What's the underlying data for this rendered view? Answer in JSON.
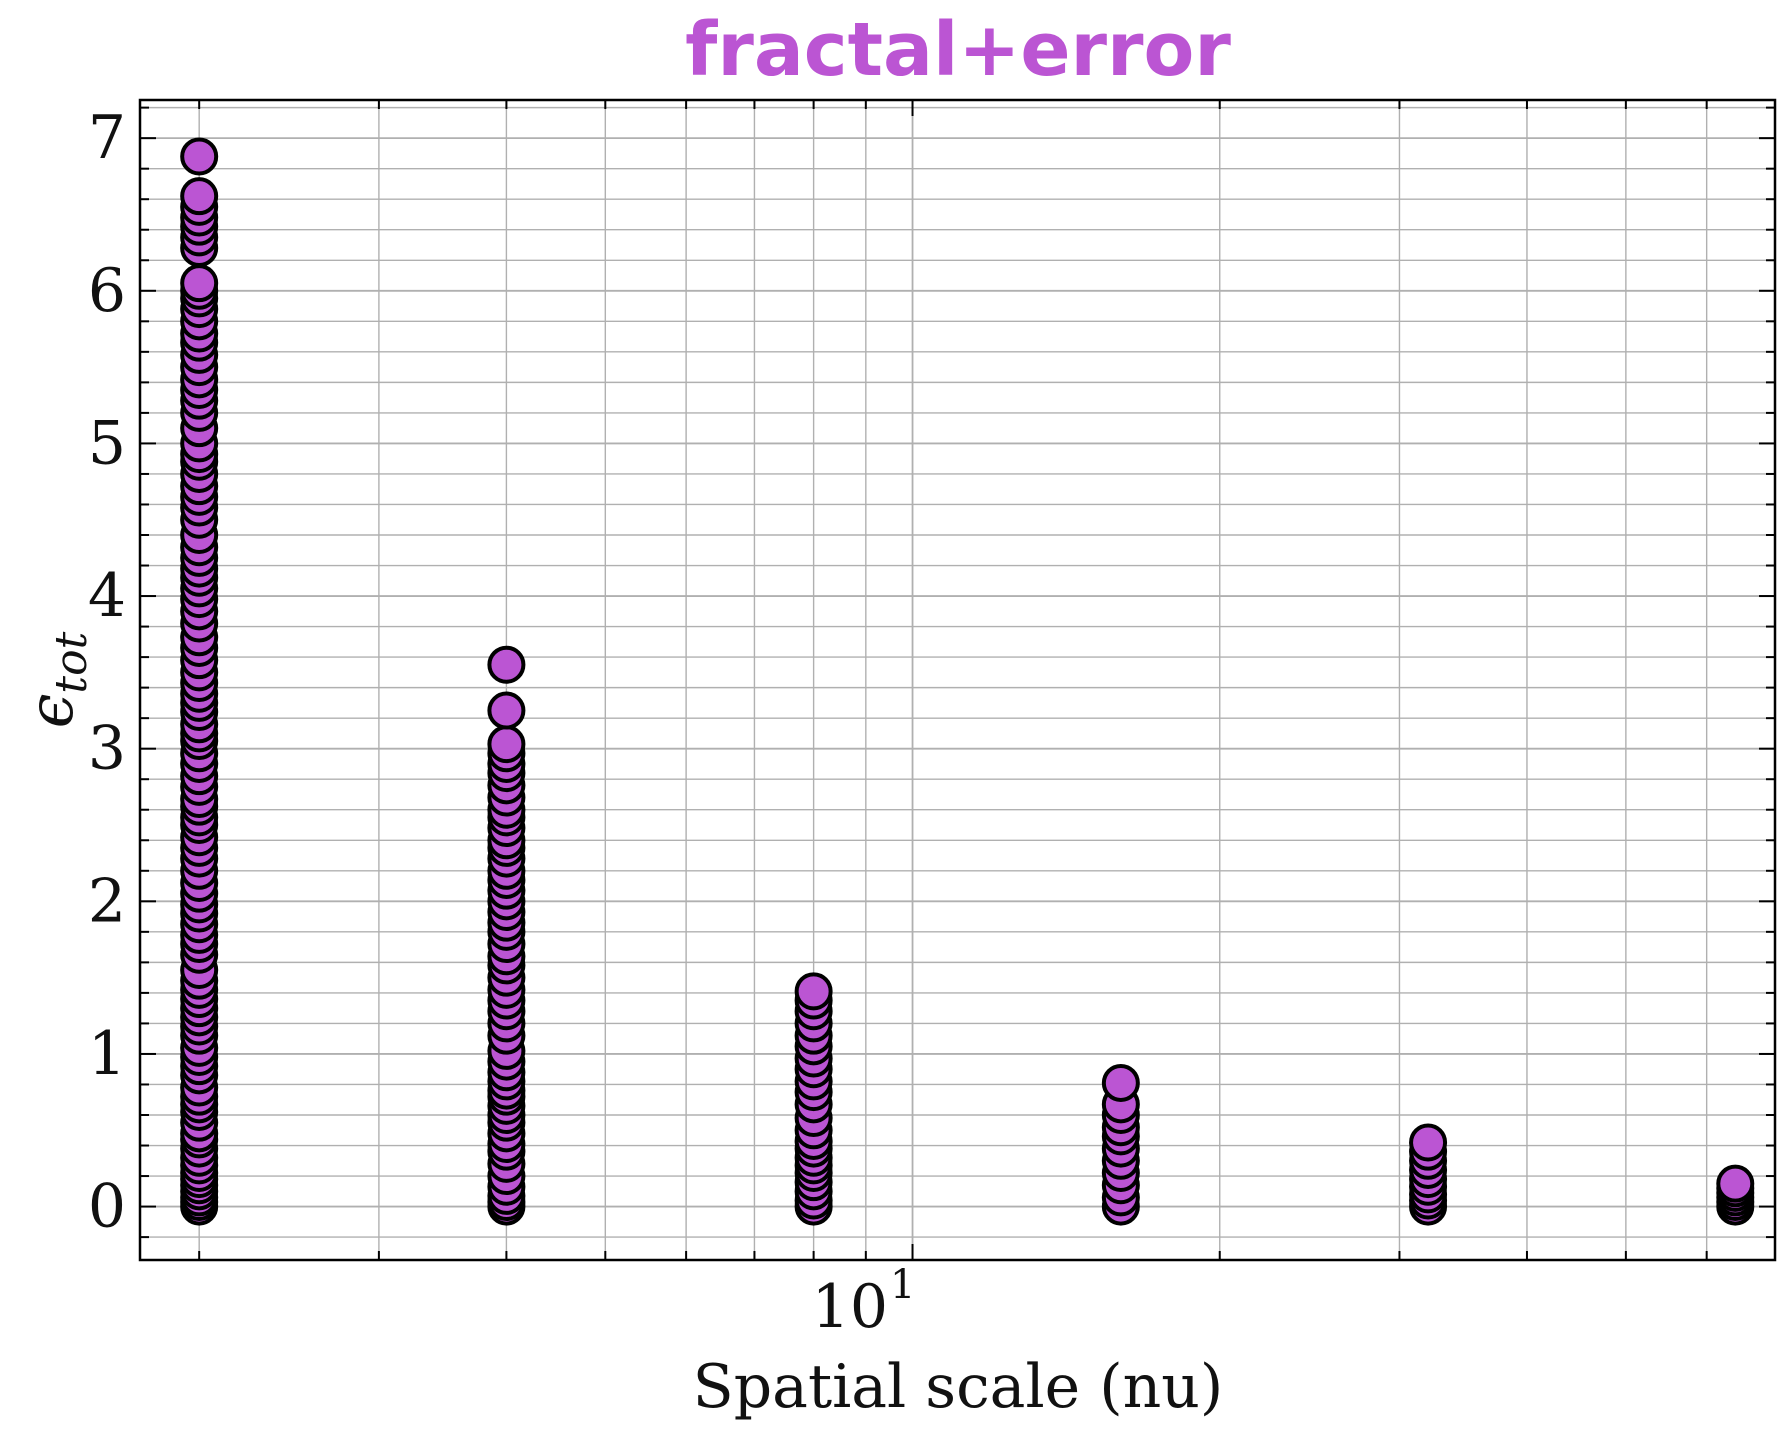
{
  "chart_data": {
    "type": "scatter",
    "title": "fractal+error",
    "xlabel": "Spatial scale (nu)",
    "ylabel": "ϵ",
    "ylabel_subscript": "tot",
    "x_scale": "log",
    "xlim": [
      1.75,
      70
    ],
    "ylim": [
      -0.35,
      7.25
    ],
    "x_tick_label_base": "10",
    "x_tick_label_exp": "1",
    "y_ticks": [
      0,
      1,
      2,
      3,
      4,
      5,
      6,
      7
    ],
    "grid": true,
    "series": [
      {
        "marker": "circle",
        "x": 2,
        "y": [
          0,
          0.03,
          0.06,
          0.1,
          0.14,
          0.18,
          0.22,
          0.27,
          0.32,
          0.38,
          0.44,
          0.48,
          0.55,
          0.62,
          0.67,
          0.72,
          0.78,
          0.86,
          0.92,
          0.98,
          1.04,
          1.12,
          1.18,
          1.24,
          1.3,
          1.36,
          1.42,
          1.48,
          1.55,
          1.65,
          1.72,
          1.78,
          1.85,
          1.92,
          1.98,
          2.05,
          2.12,
          2.2,
          2.28,
          2.35,
          2.42,
          2.5,
          2.55,
          2.62,
          2.67,
          2.75,
          2.82,
          2.9,
          2.97,
          3.05,
          3.1,
          3.16,
          3.24,
          3.3,
          3.36,
          3.43,
          3.5,
          3.58,
          3.66,
          3.73,
          3.82,
          3.9,
          3.98,
          4.05,
          4.12,
          4.18,
          4.25,
          4.32,
          4.4,
          4.5,
          4.58,
          4.65,
          4.72,
          4.8,
          4.88,
          4.93,
          5.0,
          5.1,
          5.2,
          5.28,
          5.35,
          5.42,
          5.5,
          5.58,
          5.66,
          5.72,
          5.8,
          5.88,
          5.95,
          6.0,
          6.05,
          6.28,
          6.35,
          6.42,
          6.48,
          6.55,
          6.62,
          6.88
        ],
        "color": "#bb55d3",
        "edgecolor": "#000000"
      },
      {
        "marker": "circle",
        "x": 4,
        "y": [
          0,
          0.03,
          0.07,
          0.13,
          0.2,
          0.28,
          0.36,
          0.41,
          0.48,
          0.55,
          0.6,
          0.66,
          0.72,
          0.76,
          0.82,
          0.88,
          0.95,
          1.02,
          1.12,
          1.2,
          1.28,
          1.35,
          1.42,
          1.5,
          1.58,
          1.64,
          1.72,
          1.8,
          1.86,
          1.93,
          2.0,
          2.07,
          2.14,
          2.2,
          2.28,
          2.35,
          2.4,
          2.48,
          2.55,
          2.6,
          2.68,
          2.76,
          2.84,
          2.9,
          2.97,
          3.03,
          3.25,
          3.55
        ],
        "color": "#bb55d3",
        "edgecolor": "#000000"
      },
      {
        "marker": "circle",
        "x": 8,
        "y": [
          0,
          0.04,
          0.1,
          0.16,
          0.22,
          0.27,
          0.32,
          0.38,
          0.43,
          0.5,
          0.58,
          0.67,
          0.75,
          0.82,
          0.9,
          0.97,
          1.05,
          1.12,
          1.2,
          1.28,
          1.35,
          1.41
        ],
        "color": "#bb55d3",
        "edgecolor": "#000000"
      },
      {
        "marker": "circle",
        "x": 16,
        "y": [
          0,
          0.06,
          0.14,
          0.22,
          0.3,
          0.38,
          0.46,
          0.52,
          0.6,
          0.67,
          0.81
        ],
        "color": "#bb55d3",
        "edgecolor": "#000000"
      },
      {
        "marker": "circle",
        "x": 32,
        "y": [
          0,
          0.04,
          0.08,
          0.13,
          0.18,
          0.24,
          0.3,
          0.36,
          0.42
        ],
        "color": "#bb55d3",
        "edgecolor": "#000000"
      },
      {
        "marker": "circle",
        "x": 64,
        "y": [
          0,
          0.03,
          0.06,
          0.09,
          0.12,
          0.15
        ],
        "color": "#bb55d3",
        "edgecolor": "#000000"
      }
    ]
  }
}
